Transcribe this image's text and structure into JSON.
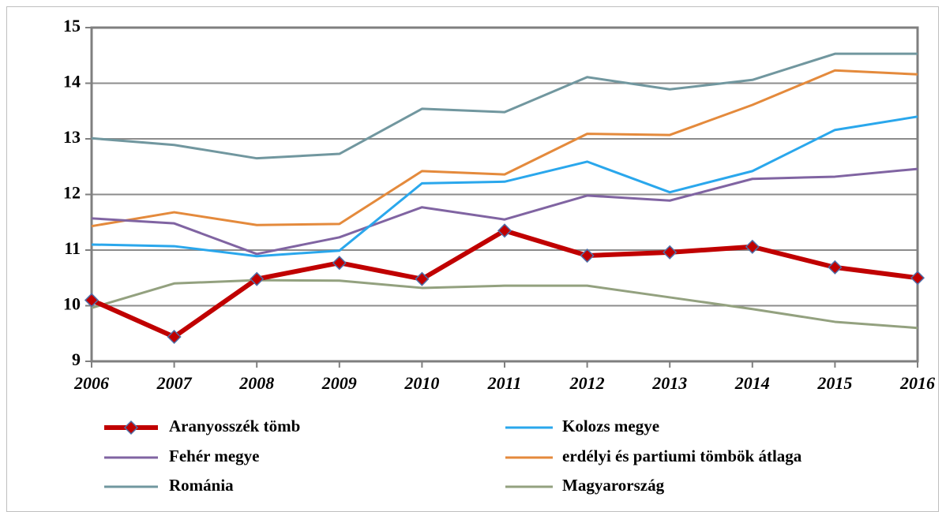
{
  "chart_data": {
    "type": "line",
    "categories": [
      "2006",
      "2007",
      "2008",
      "2009",
      "2010",
      "2011",
      "2012",
      "2013",
      "2014",
      "2015",
      "2016"
    ],
    "series": [
      {
        "name": "Aranyosszék tömb",
        "color": "#c00000",
        "marker": "diamond",
        "values": [
          10.1,
          9.44,
          10.48,
          10.77,
          10.48,
          11.35,
          10.9,
          10.96,
          11.06,
          10.69,
          10.5
        ]
      },
      {
        "name": "Kolozs megye",
        "color": "#2aa7ec",
        "values": [
          11.1,
          11.07,
          10.89,
          10.99,
          12.2,
          12.23,
          12.59,
          12.04,
          12.42,
          13.16,
          13.4
        ]
      },
      {
        "name": "Fehér megye",
        "color": "#8064a2",
        "values": [
          11.57,
          11.48,
          10.93,
          11.23,
          11.77,
          11.55,
          11.98,
          11.89,
          12.28,
          12.32,
          12.46
        ]
      },
      {
        "name": "erdélyi és partiumi tömbök átlaga",
        "color": "#e48a3c",
        "values": [
          11.43,
          11.68,
          11.45,
          11.47,
          12.42,
          12.36,
          13.09,
          13.07,
          13.61,
          14.23,
          14.16
        ]
      },
      {
        "name": "Románia",
        "color": "#71979f",
        "values": [
          13.01,
          12.89,
          12.65,
          12.73,
          13.54,
          13.48,
          14.11,
          13.89,
          14.06,
          14.53,
          14.53
        ]
      },
      {
        "name": "Magyarország",
        "color": "#93a17f",
        "values": [
          9.96,
          10.4,
          10.46,
          10.45,
          10.32,
          10.36,
          10.36,
          10.15,
          9.94,
          9.71,
          9.6
        ]
      }
    ],
    "ylim": [
      9,
      15
    ],
    "yticks": [
      9,
      10,
      11,
      12,
      13,
      14,
      15
    ],
    "grid": true,
    "legend": "bottom"
  }
}
